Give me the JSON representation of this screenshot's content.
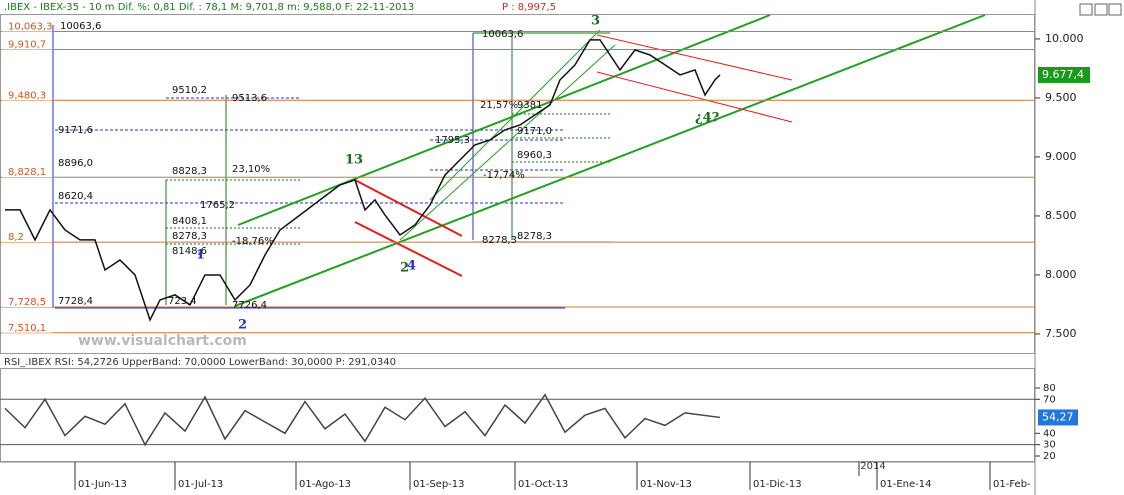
{
  "header": {
    "main": ".IBEX - IBEX-35 -   10 m Dif. %: 0,81 Dif. : 78,1 M: 9,701,8 m: 9,588,0 F: 22-11-2013",
    "price": "P : 8,997,5"
  },
  "watermark": "www.visualchart.com",
  "year_label": "2014",
  "levels": [
    {
      "label": "10,063,3",
      "value": 10063.3
    },
    {
      "label": "9,910,7",
      "value": 9910.7
    },
    {
      "label": "9,480,3",
      "value": 9480.3
    },
    {
      "label": "8,828,1",
      "value": 8828.1
    },
    {
      "label": "8,2",
      "value": 8278.3
    },
    {
      "label": "7,728,5",
      "value": 7728.5
    },
    {
      "label": "7,510,1",
      "value": 7510.1
    }
  ],
  "annotations": [
    "10063,6",
    "9510,2",
    "9513,6",
    "9171,6",
    "8896,0",
    "8828,3",
    "23,10%",
    "8620,4",
    "1765,2",
    "8408,1",
    "8278,3",
    "-18,76%",
    "8148,6",
    "7728,4",
    "723,4",
    "7726,4",
    "10063,6",
    "21,57%",
    "9381",
    "1795,3",
    "9171,0",
    "8960,3",
    "-17,74%",
    "8278,3",
    "8278,3",
    "3",
    "13",
    "2",
    "4",
    "1",
    "2",
    "¿4?"
  ],
  "chart_data": [
    {
      "type": "line",
      "color": "#111111",
      "current_label": "9.677,4",
      "x": [
        1,
        4,
        7,
        10,
        13,
        16,
        19,
        21,
        24,
        27,
        30,
        32,
        35,
        38,
        41,
        44,
        47,
        50,
        53,
        56,
        60,
        64,
        68,
        71,
        73,
        75,
        77,
        80,
        83,
        86,
        89,
        92,
        95,
        98,
        101,
        104,
        107,
        110,
        112,
        115,
        118,
        120,
        122,
        124,
        127,
        130,
        133,
        136,
        139,
        141,
        143,
        144
      ],
      "values": [
        8551,
        8551,
        8297,
        8551,
        8381,
        8297,
        8297,
        8042,
        8127,
        8000,
        7619,
        7788,
        7831,
        7746,
        8000,
        8000,
        7788,
        7915,
        8169,
        8381,
        8508,
        8636,
        8763,
        8805,
        8551,
        8636,
        8508,
        8339,
        8424,
        8593,
        8847,
        8975,
        9102,
        9144,
        9229,
        9271,
        9356,
        9441,
        9653,
        9780,
        9992,
        9992,
        9864,
        9737,
        9907,
        9864,
        9780,
        9695,
        9737,
        9525,
        9653,
        9695
      ],
      "xlim": [
        0,
        207
      ],
      "ylim": [
        7347,
        10330
      ],
      "xticks": [
        {
          "value": 15,
          "label": "01-Jun-13"
        },
        {
          "value": 35,
          "label": "01-Jul-13"
        },
        {
          "value": 59.2,
          "label": "01-Ago-13"
        },
        {
          "value": 82,
          "label": "01-Sep-13"
        },
        {
          "value": 103,
          "label": "01-Oct-13"
        },
        {
          "value": 127.4,
          "label": "01-Nov-13"
        },
        {
          "value": 150,
          "label": "01-Dic-13"
        },
        {
          "value": 175.4,
          "label": "01-Ene-14"
        },
        {
          "value": 198,
          "label": "01-Feb-"
        }
      ],
      "yticks": [
        {
          "value": 7500,
          "label": "7.500"
        },
        {
          "value": 8000,
          "label": "8.000"
        },
        {
          "value": 8500,
          "label": "8.500"
        },
        {
          "value": 9000,
          "label": "9.000"
        },
        {
          "value": 9500,
          "label": "9.500"
        },
        {
          "value": 10000,
          "label": "10.000"
        }
      ]
    },
    {
      "type": "line",
      "title": "RSI_.IBEX RSI: 54,2726 UpperBand: 70,0000 LowerBand: 30,0000 P: 291,0340",
      "color": "#444444",
      "current_label": "54,27",
      "x": [
        1,
        5,
        9,
        13,
        17,
        21,
        25,
        29,
        33,
        37,
        41,
        45,
        49,
        53,
        57,
        61,
        65,
        69,
        73,
        77,
        81,
        85,
        89,
        93,
        97,
        101,
        105,
        109,
        113,
        117,
        121,
        125,
        129,
        133,
        137,
        144
      ],
      "values": [
        62,
        45,
        70,
        38,
        55,
        48,
        66,
        30,
        58,
        42,
        72,
        35,
        60,
        50,
        40,
        68,
        44,
        57,
        33,
        63,
        52,
        71,
        46,
        59,
        38,
        65,
        49,
        74,
        41,
        56,
        62,
        36,
        53,
        47,
        58,
        54
      ],
      "xlim": [
        0,
        207
      ],
      "ylim": [
        14.7,
        97.6
      ],
      "bands": [
        30,
        70
      ],
      "yticks": [
        20,
        30,
        40,
        70,
        80
      ]
    }
  ]
}
